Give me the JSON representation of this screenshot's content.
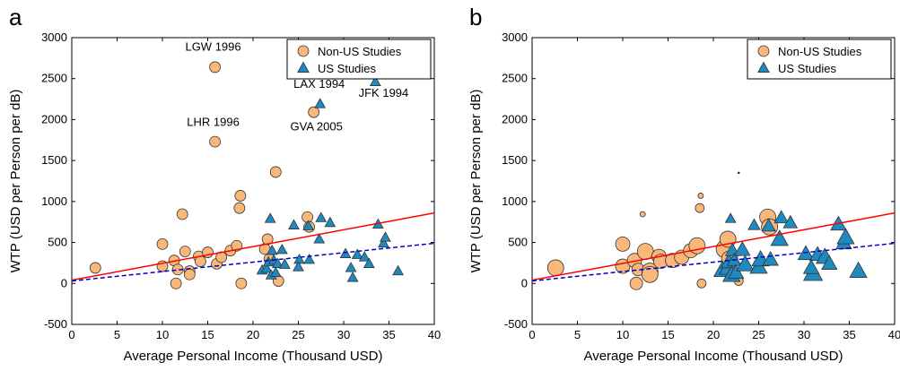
{
  "colors": {
    "non_us_fill": "#F9B77A",
    "us_fill": "#1F8AC0",
    "marker_stroke": "#333333",
    "nonus_fit": "#FF0000",
    "us_fit": "#0000CC"
  },
  "chart_data": [
    {
      "type": "scatter",
      "panel_label": "a",
      "xlabel": "Average Personal Income (Thousand USD)",
      "ylabel": "WTP (USD per Person per dB)",
      "xlim": [
        0,
        40
      ],
      "ylim": [
        -500,
        3000
      ],
      "xticks": [
        0,
        5,
        10,
        15,
        20,
        25,
        30,
        35,
        40
      ],
      "yticks": [
        -500,
        0,
        500,
        1000,
        1500,
        2000,
        2500,
        3000
      ],
      "legend_position": "top-right",
      "series": [
        {
          "name": "Non-US Studies",
          "marker": "circle",
          "points": [
            [
              2.6,
              190
            ],
            [
              10,
              480
            ],
            [
              10,
              210
            ],
            [
              11.3,
              280
            ],
            [
              11.5,
              0
            ],
            [
              11.7,
              170
            ],
            [
              12.2,
              845
            ],
            [
              12.5,
              390
            ],
            [
              13,
              150
            ],
            [
              13,
              110
            ],
            [
              14,
              330
            ],
            [
              14.2,
              270
            ],
            [
              15,
              380
            ],
            [
              15.8,
              2640
            ],
            [
              15.8,
              1730
            ],
            [
              16,
              240
            ],
            [
              16.5,
              320
            ],
            [
              17.5,
              400
            ],
            [
              18.2,
              460
            ],
            [
              18.5,
              920
            ],
            [
              18.6,
              1070
            ],
            [
              18.7,
              0
            ],
            [
              21.3,
              420
            ],
            [
              21.6,
              540
            ],
            [
              21.8,
              300
            ],
            [
              22.5,
              1360
            ],
            [
              22.8,
              30
            ],
            [
              26,
              810
            ],
            [
              26.2,
              690
            ],
            [
              26.7,
              2090
            ]
          ]
        },
        {
          "name": "US Studies",
          "marker": "triangle",
          "points": [
            [
              21,
              160
            ],
            [
              21.5,
              180
            ],
            [
              21.7,
              260
            ],
            [
              21.9,
              790
            ],
            [
              22,
              100
            ],
            [
              22.1,
              400
            ],
            [
              22.3,
              280
            ],
            [
              22.5,
              130
            ],
            [
              22.7,
              240
            ],
            [
              23.2,
              410
            ],
            [
              23.5,
              230
            ],
            [
              24.5,
              710
            ],
            [
              25.1,
              290
            ],
            [
              25,
              200
            ],
            [
              26.1,
              700
            ],
            [
              26.2,
              290
            ],
            [
              27.3,
              540
            ],
            [
              27.5,
              800
            ],
            [
              27.4,
              2190
            ],
            [
              28.5,
              740
            ],
            [
              30.2,
              360
            ],
            [
              31,
              70
            ],
            [
              31.5,
              350
            ],
            [
              32.3,
              320
            ],
            [
              33.5,
              2460
            ],
            [
              33.8,
              720
            ],
            [
              34.4,
              490
            ],
            [
              34.6,
              560
            ],
            [
              36,
              150
            ],
            [
              32.8,
              240
            ],
            [
              30.8,
              190
            ]
          ]
        }
      ],
      "fit_lines": [
        {
          "series": "Non-US Studies",
          "style": "solid",
          "x": [
            0,
            40
          ],
          "y": [
            40,
            860
          ]
        },
        {
          "series": "US Studies",
          "style": "dashed",
          "x": [
            0,
            40
          ],
          "y": [
            30,
            490
          ]
        }
      ],
      "annotations": [
        {
          "text": "LGW 1996",
          "x": 15.6,
          "y": 2840
        },
        {
          "text": "LHR 1996",
          "x": 15.6,
          "y": 1920
        },
        {
          "text": "LAX 1994",
          "x": 27.3,
          "y": 2390
        },
        {
          "text": "JFK 1994",
          "x": 34.4,
          "y": 2280
        },
        {
          "text": "GVA 2005",
          "x": 27,
          "y": 1870
        }
      ]
    },
    {
      "type": "scatter",
      "panel_label": "b",
      "xlabel": "Average Personal Income (Thousand USD)",
      "ylabel": "WTP (USD per Person per dB)",
      "xlim": [
        0,
        40
      ],
      "ylim": [
        -500,
        3000
      ],
      "xticks": [
        0,
        5,
        10,
        15,
        20,
        25,
        30,
        35,
        40
      ],
      "yticks": [
        -500,
        0,
        500,
        1000,
        1500,
        2000,
        2500,
        3000
      ],
      "legend_position": "top-right",
      "note": "marker size proportional to study weight",
      "series": [
        {
          "name": "Non-US Studies",
          "marker": "circle",
          "points": [
            [
              2.6,
              190,
              9
            ],
            [
              10,
              480,
              8
            ],
            [
              10,
              210,
              8
            ],
            [
              11.3,
              280,
              8
            ],
            [
              11.5,
              0,
              7
            ],
            [
              11.7,
              170,
              7
            ],
            [
              12.2,
              845,
              3
            ],
            [
              12.5,
              390,
              9
            ],
            [
              13,
              150,
              9
            ],
            [
              13,
              110,
              9
            ],
            [
              14,
              330,
              8
            ],
            [
              14.2,
              270,
              8
            ],
            [
              15.5,
              280,
              8
            ],
            [
              16.5,
              320,
              8
            ],
            [
              17.5,
              400,
              8
            ],
            [
              18.2,
              460,
              9
            ],
            [
              18.5,
              920,
              5
            ],
            [
              18.6,
              1070,
              3
            ],
            [
              18.7,
              0,
              5
            ],
            [
              21.3,
              420,
              10
            ],
            [
              21.6,
              540,
              9
            ],
            [
              21.8,
              300,
              9
            ],
            [
              22.8,
              30,
              5
            ],
            [
              26,
              810,
              9
            ],
            [
              26.2,
              690,
              9
            ]
          ]
        },
        {
          "name": "US Studies",
          "marker": "triangle",
          "points": [
            [
              21,
              160,
              10
            ],
            [
              21.5,
              180,
              9
            ],
            [
              21.7,
              260,
              9
            ],
            [
              21.9,
              790,
              6
            ],
            [
              22,
              100,
              10
            ],
            [
              22.1,
              400,
              8
            ],
            [
              22.3,
              280,
              8
            ],
            [
              22.5,
              130,
              9
            ],
            [
              23.2,
              410,
              9
            ],
            [
              23.5,
              230,
              10
            ],
            [
              24.5,
              710,
              7
            ],
            [
              25,
              200,
              10
            ],
            [
              25.2,
              290,
              10
            ],
            [
              26.1,
              700,
              8
            ],
            [
              26.3,
              290,
              9
            ],
            [
              27.3,
              540,
              10
            ],
            [
              27.5,
              800,
              8
            ],
            [
              28.5,
              740,
              8
            ],
            [
              30.2,
              360,
              9
            ],
            [
              31,
              120,
              11
            ],
            [
              31.5,
              350,
              9
            ],
            [
              32.3,
              320,
              10
            ],
            [
              33.8,
              720,
              9
            ],
            [
              34.4,
              490,
              9
            ],
            [
              34.6,
              560,
              10
            ],
            [
              36,
              150,
              10
            ],
            [
              32.8,
              240,
              9
            ],
            [
              30.8,
              190,
              9
            ]
          ]
        }
      ],
      "fit_lines": [
        {
          "series": "Non-US Studies",
          "style": "solid",
          "x": [
            0,
            40
          ],
          "y": [
            40,
            860
          ]
        },
        {
          "series": "US Studies",
          "style": "dashed",
          "x": [
            0,
            40
          ],
          "y": [
            30,
            490
          ]
        }
      ],
      "annotations": [],
      "dots": [
        [
          22.8,
          1350
        ]
      ]
    }
  ]
}
